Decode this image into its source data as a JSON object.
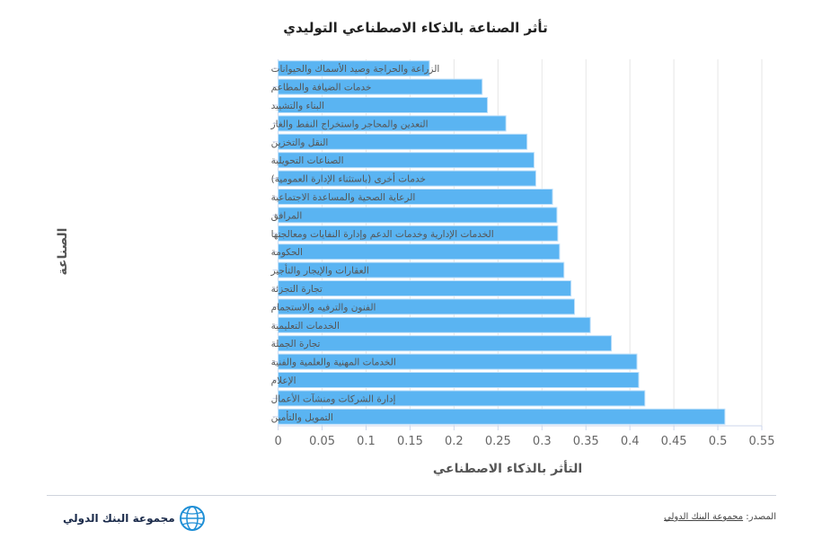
{
  "chart_data": {
    "type": "bar",
    "orientation": "horizontal",
    "title": "تأثر الصناعة بالذكاء الاصطناعي التوليدي",
    "xlabel": "التأثر بالذكاء الاصطناعي",
    "ylabel": "الصناعة",
    "xlim": [
      0,
      0.55
    ],
    "xticks": [
      "0",
      "0.05",
      "0.1",
      "0.15",
      "0.2",
      "0.25",
      "0.3",
      "0.35",
      "0.4",
      "0.45",
      "0.5",
      "0.55"
    ],
    "grid": true,
    "bar_color": "#5ab4f2",
    "categories": [
      "الزراعة والحراجة وصيد الأسماك والحيوانات",
      "خدمات الضيافة والمطاعم",
      "البناء والتشييد",
      "التعدين والمحاجر واستخراج النفط والغاز",
      "النقل والتخزين",
      "الصناعات التحويلية",
      "خدمات أخرى (باستثناء الإدارة العمومية)",
      "الرعاية الصحية والمساعدة الاجتماعية",
      "المرافق",
      "الخدمات الإدارية وخدمات الدعم وإدارة النفايات ومعالجتها",
      "الحكومة",
      "العقارات والإيجار والتأجير",
      "تجارة التجزئة",
      "الفنون والترفيه والاستجمام",
      "الخدمات التعليمية",
      "تجارة الجملة",
      "الخدمات المهنية والعلمية والفنية",
      "الإعلام",
      "إدارة الشركات ومنشآت الأعمال",
      "التمويل والتأمين"
    ],
    "values": [
      0.172,
      0.232,
      0.238,
      0.259,
      0.283,
      0.291,
      0.293,
      0.312,
      0.317,
      0.318,
      0.32,
      0.325,
      0.333,
      0.337,
      0.355,
      0.379,
      0.408,
      0.41,
      0.417,
      0.508
    ]
  },
  "footer": {
    "source_label": "المصدر:",
    "source_link": "مجموعة البنك الدولي",
    "logo_text": "مجموعة البنك الدولي"
  }
}
